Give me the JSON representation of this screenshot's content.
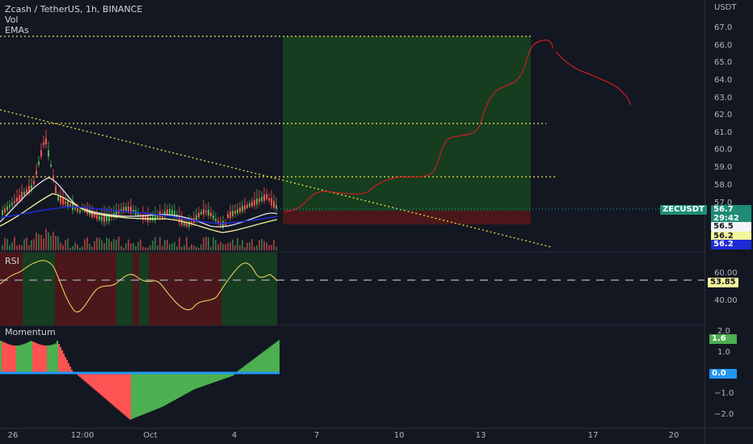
{
  "header": {
    "symbol_line": "Zcash / TetherUS, 1h, BINANCE",
    "vol_label": "Vol",
    "emas_label": "EMAs"
  },
  "price_axis": {
    "currency": "USDT",
    "ticks": [
      "67.0",
      "66.0",
      "65.0",
      "64.0",
      "63.0",
      "62.0",
      "61.0",
      "60.0",
      "59.0",
      "58.0",
      "57.0"
    ]
  },
  "price_badges": {
    "ticker": "ZECUSDT",
    "last_price": "56.7",
    "countdown": "29:42",
    "ema1": "56.5",
    "ema2": "56.2",
    "ema3": "56.2"
  },
  "rsi": {
    "label": "RSI",
    "ticks": [
      "60.00",
      "40.00"
    ],
    "value": "53.85"
  },
  "momentum": {
    "label": "Momentum",
    "ticks": [
      "2.0",
      "1.0",
      "−1.0",
      "−2.0"
    ],
    "value_pos": "1.6",
    "value_zero": "0.0"
  },
  "time_axis": {
    "ticks": [
      "26",
      "12:00",
      "Oct",
      "4",
      "7",
      "10",
      "13",
      "17",
      "20"
    ]
  },
  "colors": {
    "background": "#131722",
    "up": "#4caf50",
    "down": "#ff5252",
    "long_target_zone": "#153d1e",
    "long_stop_zone": "#4a1619",
    "guide_line": "#e8e349",
    "ema_blue": "#1e2bd6",
    "drawn_path": "#d11c24",
    "badge_teal": "#1e8c76",
    "rsi_line": "#e8d05e",
    "momentum_zero": "#2196f3"
  }
}
